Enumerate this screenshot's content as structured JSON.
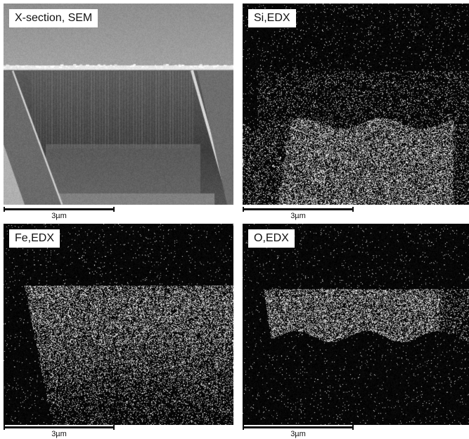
{
  "panels": [
    {
      "id": "sem",
      "label": "X-section, SEM",
      "scale_label": "3µm"
    },
    {
      "id": "si",
      "label": "Si,EDX",
      "scale_label": "3µm"
    },
    {
      "id": "fe",
      "label": "Fe,EDX",
      "scale_label": "3µm"
    },
    {
      "id": "o",
      "label": "O,EDX",
      "scale_label": "3µm"
    }
  ]
}
